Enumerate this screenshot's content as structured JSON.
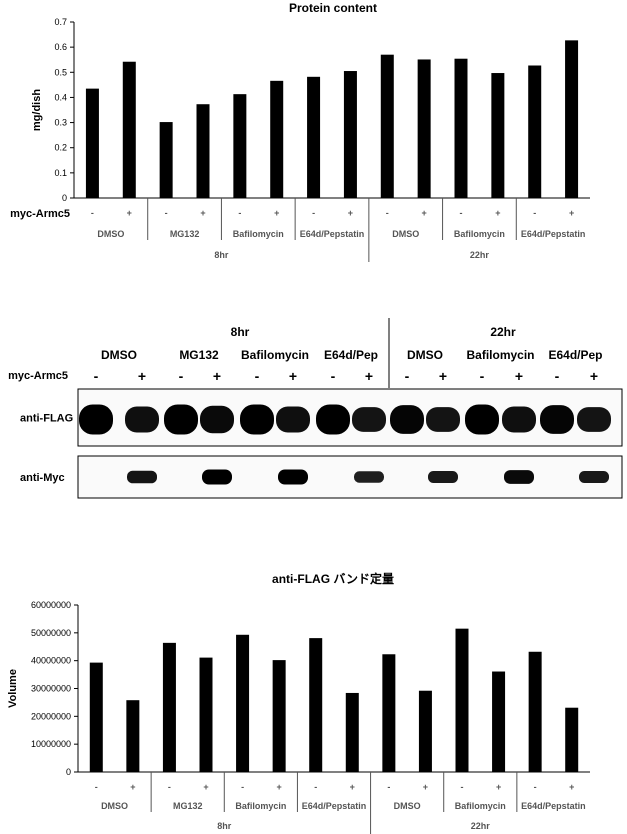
{
  "chart_data": [
    {
      "type": "bar",
      "title": "Protein content",
      "ylabel": "mg/dish",
      "ylim": [
        0,
        0.7
      ],
      "yticks": [
        "0",
        "0.1",
        "0.2",
        "0.3",
        "0.4",
        "0.5",
        "0.6",
        "0.7"
      ],
      "row_label": "myc-Armc5",
      "signs": [
        "-",
        "+",
        "-",
        "+",
        "-",
        "+",
        "-",
        "+",
        "-",
        "+",
        "-",
        "+",
        "-",
        "+"
      ],
      "groups": [
        "DMSO",
        "MG132",
        "Bafilomycin",
        "E64d/Pepstatin",
        "DMSO",
        "Bafilomycin",
        "E64d/Pepstatin"
      ],
      "times": [
        "8hr",
        "22hr"
      ],
      "values": [
        0.435,
        0.542,
        0.302,
        0.373,
        0.413,
        0.466,
        0.482,
        0.505,
        0.57,
        0.551,
        0.554,
        0.497,
        0.527,
        0.627
      ]
    },
    {
      "type": "bar",
      "title": "anti-FLAG バンド定量",
      "ylabel": "Volume",
      "ylim": [
        0,
        60000000
      ],
      "yticks": [
        "0",
        "10000000",
        "20000000",
        "30000000",
        "40000000",
        "50000000",
        "60000000"
      ],
      "signs": [
        "-",
        "+",
        "-",
        "+",
        "-",
        "+",
        "-",
        "+",
        "-",
        "+",
        "-",
        "+",
        "-",
        "+"
      ],
      "groups": [
        "DMSO",
        "MG132",
        "Bafilomycin",
        "E64d/Pepstatin",
        "DMSO",
        "Bafilomycin",
        "E64d/Pepstatin"
      ],
      "times": [
        "8hr",
        "22hr"
      ],
      "values": [
        39300000,
        25800000,
        46400000,
        41100000,
        49300000,
        40200000,
        48100000,
        28400000,
        42300000,
        29200000,
        51500000,
        36100000,
        43200000,
        23100000
      ]
    }
  ],
  "blot": {
    "times": [
      "8hr",
      "22hr"
    ],
    "groups": [
      "DMSO",
      "MG132",
      "Bafilomycin",
      "E64d/Pep",
      "DMSO",
      "Bafilomycin",
      "E64d/Pep"
    ],
    "row_label": "myc-Armc5",
    "signs": [
      "-",
      "+",
      "-",
      "+",
      "-",
      "+",
      "-",
      "+",
      "-",
      "+",
      "-",
      "+",
      "-",
      "+"
    ],
    "panels": [
      {
        "label": "anti-FLAG",
        "intensity": [
          1.0,
          0.85,
          1.0,
          0.9,
          1.0,
          0.85,
          1.0,
          0.8,
          0.95,
          0.8,
          1.0,
          0.85,
          0.95,
          0.8
        ]
      },
      {
        "label": "anti-Myc",
        "intensity": [
          0,
          0.8,
          0,
          1.0,
          0,
          1.0,
          0,
          0.7,
          0,
          0.75,
          0,
          0.9,
          0,
          0.75
        ]
      }
    ]
  }
}
